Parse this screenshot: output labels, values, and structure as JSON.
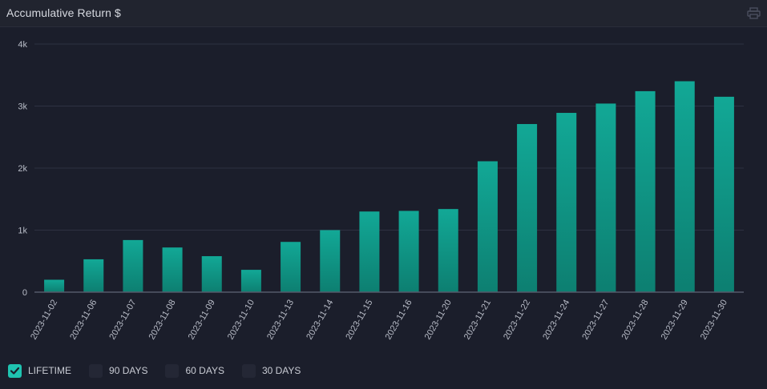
{
  "header": {
    "title": "Accumulative Return $",
    "print_icon": "printer-icon"
  },
  "colors": {
    "bar_top": "#12a896",
    "bar_bottom": "#0d7f71",
    "grid": "#2e3242",
    "axis": "#555a6b",
    "checked": "#1fc3b0"
  },
  "legend": [
    {
      "label": "LIFETIME",
      "checked": true
    },
    {
      "label": "90 DAYS",
      "checked": false
    },
    {
      "label": "60 DAYS",
      "checked": false
    },
    {
      "label": "30 DAYS",
      "checked": false
    }
  ],
  "chart_data": {
    "type": "bar",
    "title": "Accumulative Return $",
    "xlabel": "",
    "ylabel": "",
    "ylim": [
      0,
      4000
    ],
    "yticks": [
      0,
      1000,
      2000,
      3000,
      4000
    ],
    "ytick_labels": [
      "0",
      "1k",
      "2k",
      "3k",
      "4k"
    ],
    "grid": true,
    "categories": [
      "2023-11-02",
      "2023-11-06",
      "2023-11-07",
      "2023-11-08",
      "2023-11-09",
      "2023-11-10",
      "2023-11-13",
      "2023-11-14",
      "2023-11-15",
      "2023-11-16",
      "2023-11-20",
      "2023-11-21",
      "2023-11-22",
      "2023-11-24",
      "2023-11-27",
      "2023-11-28",
      "2023-11-29",
      "2023-11-30"
    ],
    "values": [
      200,
      530,
      840,
      720,
      580,
      360,
      810,
      1000,
      1300,
      1310,
      1340,
      2110,
      2710,
      2890,
      3040,
      3240,
      3400,
      3150
    ]
  }
}
